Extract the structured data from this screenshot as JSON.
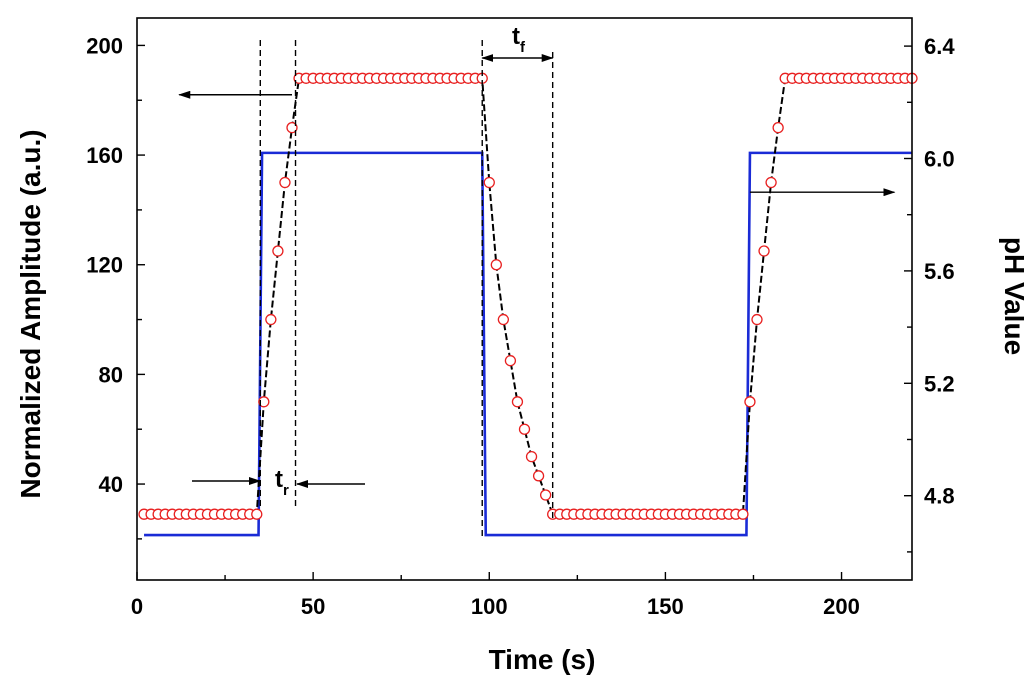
{
  "chart_data": {
    "type": "line",
    "title": "",
    "xlabel": "Time (s)",
    "ylabel_left": "Normalized Amplitude (a.u.)",
    "ylabel_right": "pH Value",
    "xlim": [
      0,
      220
    ],
    "ylim_left": [
      5,
      210
    ],
    "ylim_right": [
      4.5,
      6.5
    ],
    "x_ticks": [
      0,
      50,
      100,
      150,
      200
    ],
    "y_left_ticks": [
      40,
      80,
      120,
      160,
      200
    ],
    "y_right_ticks": [
      4.8,
      5.2,
      5.6,
      6.0,
      6.4
    ],
    "y_right_tick_labels": [
      "4.8",
      "5.2",
      "5.6",
      "6.0",
      "6.4"
    ],
    "grid": false,
    "series": [
      {
        "name": "Normalized Amplitude",
        "axis": "left",
        "style": "red open circles with black dashed line",
        "color": "#e82020",
        "line_color": "#000000",
        "x": [
          2,
          4,
          6,
          8,
          10,
          12,
          14,
          16,
          18,
          20,
          22,
          24,
          26,
          28,
          30,
          32,
          34,
          36,
          38,
          40,
          42,
          44,
          46,
          48,
          50,
          52,
          54,
          56,
          58,
          60,
          62,
          64,
          66,
          68,
          70,
          72,
          74,
          76,
          78,
          80,
          82,
          84,
          86,
          88,
          90,
          92,
          94,
          96,
          98,
          100,
          102,
          104,
          106,
          108,
          110,
          112,
          114,
          116,
          118,
          120,
          122,
          124,
          126,
          128,
          130,
          132,
          134,
          136,
          138,
          140,
          142,
          144,
          146,
          148,
          150,
          152,
          154,
          156,
          158,
          160,
          162,
          164,
          166,
          168,
          170,
          172,
          174,
          176,
          178,
          180,
          182,
          184,
          186,
          188,
          190,
          192,
          194,
          196,
          198,
          200,
          202,
          204,
          206,
          208,
          210,
          212,
          214,
          216,
          218,
          220
        ],
        "values": [
          29,
          29,
          29,
          29,
          29,
          29,
          29,
          29,
          29,
          29,
          29,
          29,
          29,
          29,
          29,
          29,
          29,
          70,
          100,
          125,
          150,
          170,
          188,
          188,
          188,
          188,
          188,
          188,
          188,
          188,
          188,
          188,
          188,
          188,
          188,
          188,
          188,
          188,
          188,
          188,
          188,
          188,
          188,
          188,
          188,
          188,
          188,
          188,
          188,
          150,
          120,
          100,
          85,
          70,
          60,
          50,
          43,
          36,
          29,
          29,
          29,
          29,
          29,
          29,
          29,
          29,
          29,
          29,
          29,
          29,
          29,
          29,
          29,
          29,
          29,
          29,
          29,
          29,
          29,
          29,
          29,
          29,
          29,
          29,
          29,
          29,
          70,
          100,
          125,
          150,
          170,
          188,
          188,
          188,
          188,
          188,
          188,
          188,
          188,
          188,
          188,
          188,
          188,
          188,
          188,
          188,
          188,
          188,
          188,
          188
        ]
      },
      {
        "name": "pH Value",
        "axis": "right",
        "style": "solid blue line",
        "color": "#1a2bd6",
        "x": [
          2,
          34.5,
          35.5,
          98,
          99,
          173,
          174,
          220
        ],
        "values": [
          4.66,
          4.66,
          6.02,
          6.02,
          4.66,
          4.66,
          6.02,
          6.02
        ]
      }
    ],
    "annotations": [
      {
        "text": "t",
        "subscript": "r",
        "meaning": "rise time"
      },
      {
        "text": "t",
        "subscript": "f",
        "meaning": "fall time"
      }
    ],
    "guide_lines_x": [
      35,
      45,
      98,
      118
    ],
    "arrows": [
      {
        "from_x": 44,
        "to_x": 12,
        "y_axis": "left",
        "y": 182,
        "meaning": "circles use left axis"
      },
      {
        "from_x": 174,
        "to_x": 215,
        "y_axis": "right",
        "y": 5.88,
        "meaning": "line uses right axis"
      }
    ]
  }
}
